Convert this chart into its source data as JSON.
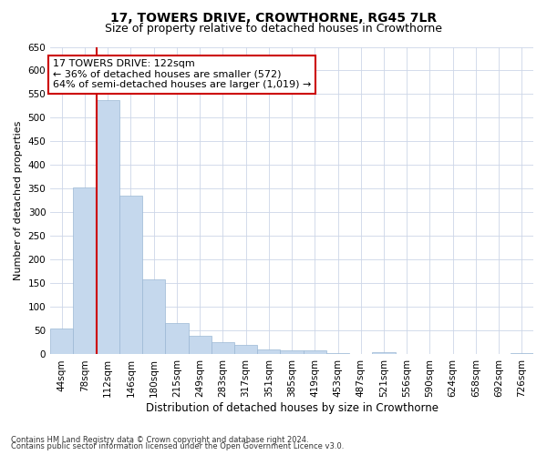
{
  "title1": "17, TOWERS DRIVE, CROWTHORNE, RG45 7LR",
  "title2": "Size of property relative to detached houses in Crowthorne",
  "xlabel": "Distribution of detached houses by size in Crowthorne",
  "ylabel": "Number of detached properties",
  "footer1": "Contains HM Land Registry data © Crown copyright and database right 2024.",
  "footer2": "Contains public sector information licensed under the Open Government Licence v3.0.",
  "categories": [
    "44sqm",
    "78sqm",
    "112sqm",
    "146sqm",
    "180sqm",
    "215sqm",
    "249sqm",
    "283sqm",
    "317sqm",
    "351sqm",
    "385sqm",
    "419sqm",
    "453sqm",
    "487sqm",
    "521sqm",
    "556sqm",
    "590sqm",
    "624sqm",
    "658sqm",
    "692sqm",
    "726sqm"
  ],
  "values": [
    55,
    352,
    538,
    335,
    158,
    67,
    40,
    25,
    20,
    10,
    8,
    8,
    2,
    0,
    5,
    0,
    0,
    0,
    0,
    0,
    3
  ],
  "bar_color": "#c5d8ed",
  "bar_edge_color": "#9bb8d4",
  "redline_index": 2,
  "redline_color": "#cc0000",
  "annotation_text": "17 TOWERS DRIVE: 122sqm\n← 36% of detached houses are smaller (572)\n64% of semi-detached houses are larger (1,019) →",
  "annotation_box_color": "#ffffff",
  "annotation_border_color": "#cc0000",
  "ylim": [
    0,
    650
  ],
  "yticks": [
    0,
    50,
    100,
    150,
    200,
    250,
    300,
    350,
    400,
    450,
    500,
    550,
    600,
    650
  ],
  "background_color": "#ffffff",
  "grid_color": "#ccd6e8",
  "title1_fontsize": 10,
  "title2_fontsize": 9,
  "xlabel_fontsize": 8.5,
  "ylabel_fontsize": 8,
  "tick_fontsize": 7.5,
  "annotation_fontsize": 8,
  "footer_fontsize": 6
}
